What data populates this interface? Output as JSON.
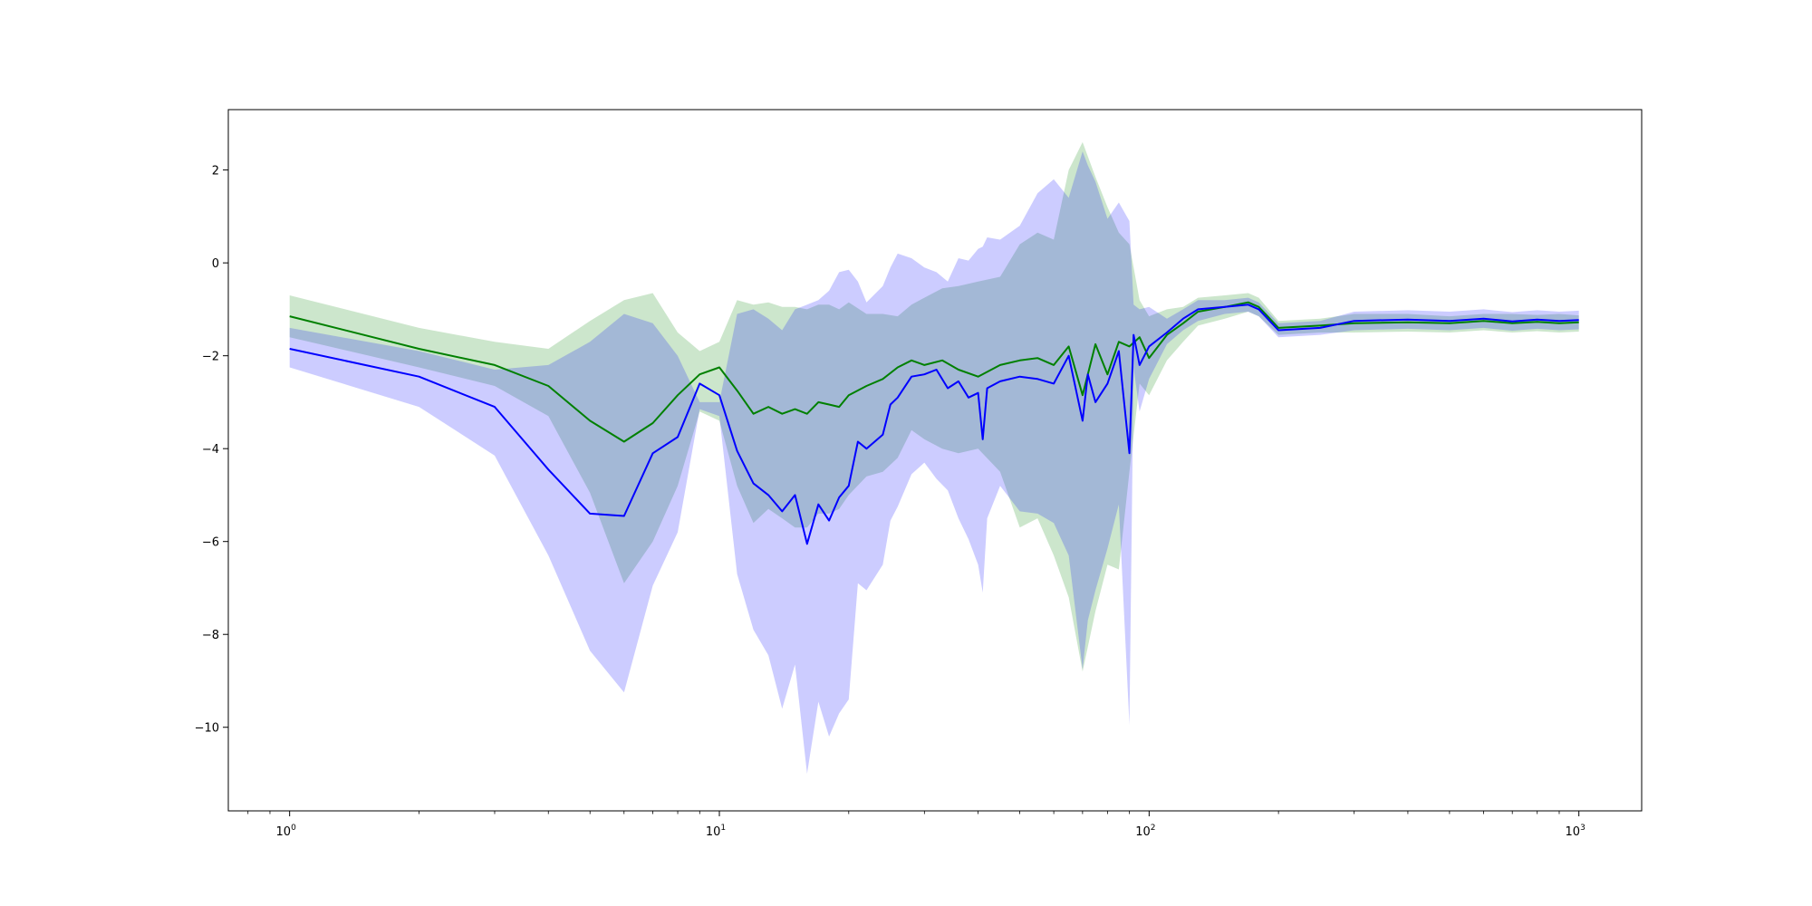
{
  "chart_data": {
    "type": "line",
    "title": "",
    "xlabel": "",
    "ylabel": "",
    "x_scale": "log",
    "xlim": [
      0.72,
      1400
    ],
    "ylim": [
      -11.8,
      3.3
    ],
    "grid": false,
    "legend": "none",
    "x_ticks": [
      {
        "value": 1,
        "base": "10",
        "exp": "0"
      },
      {
        "value": 10,
        "base": "10",
        "exp": "1"
      },
      {
        "value": 100,
        "base": "10",
        "exp": "2"
      },
      {
        "value": 1000,
        "base": "10",
        "exp": "3"
      }
    ],
    "y_ticks": [
      {
        "value": 2,
        "label": "2"
      },
      {
        "value": 0,
        "label": "0"
      },
      {
        "value": -2,
        "label": "−2"
      },
      {
        "value": -4,
        "label": "−4"
      },
      {
        "value": -6,
        "label": "−6"
      },
      {
        "value": -8,
        "label": "−8"
      },
      {
        "value": -10,
        "label": "−10"
      }
    ],
    "series": [
      {
        "color": "#008000",
        "fill_opacity": 0.2,
        "x": [
          1,
          2,
          3,
          4,
          5,
          6,
          7,
          8,
          9,
          10,
          11,
          12,
          13,
          14,
          15,
          16,
          17,
          18,
          19,
          20,
          22,
          24,
          26,
          28,
          30,
          33,
          36,
          40,
          45,
          50,
          55,
          60,
          65,
          70,
          75,
          80,
          85,
          90,
          95,
          100,
          110,
          120,
          130,
          150,
          170,
          180,
          200,
          250,
          300,
          400,
          500,
          600,
          700,
          800,
          900,
          1000
        ],
        "y": [
          -1.15,
          -1.85,
          -2.2,
          -2.65,
          -3.4,
          -3.85,
          -3.45,
          -2.85,
          -2.4,
          -2.25,
          -2.75,
          -3.25,
          -3.1,
          -3.25,
          -3.15,
          -3.25,
          -3.0,
          -3.05,
          -3.1,
          -2.85,
          -2.65,
          -2.5,
          -2.25,
          -2.1,
          -2.2,
          -2.1,
          -2.3,
          -2.45,
          -2.2,
          -2.1,
          -2.05,
          -2.2,
          -1.8,
          -2.85,
          -1.75,
          -2.4,
          -1.7,
          -1.8,
          -1.6,
          -2.05,
          -1.55,
          -1.3,
          -1.05,
          -0.95,
          -0.85,
          -0.95,
          -1.4,
          -1.35,
          -1.3,
          -1.28,
          -1.3,
          -1.25,
          -1.3,
          -1.27,
          -1.3,
          -1.28
        ],
        "upper": [
          -0.7,
          -1.4,
          -1.7,
          -1.85,
          -1.25,
          -0.8,
          -0.65,
          -1.5,
          -1.9,
          -1.7,
          -0.8,
          -0.9,
          -0.85,
          -0.95,
          -0.95,
          -1.0,
          -0.9,
          -0.9,
          -1.0,
          -0.85,
          -1.1,
          -1.1,
          -1.15,
          -0.9,
          -0.75,
          -0.55,
          -0.5,
          -0.4,
          -0.3,
          0.4,
          0.65,
          0.5,
          2.0,
          2.6,
          1.85,
          1.2,
          0.65,
          0.4,
          -0.8,
          -1.15,
          -1.0,
          -0.95,
          -0.75,
          -0.7,
          -0.65,
          -0.75,
          -1.25,
          -1.2,
          -1.1,
          -1.1,
          -1.15,
          -1.1,
          -1.1,
          -1.12,
          -1.1,
          -1.13
        ],
        "lower": [
          -1.6,
          -2.25,
          -2.65,
          -3.3,
          -4.95,
          -6.9,
          -6.0,
          -4.8,
          -3.2,
          -3.4,
          -4.8,
          -5.6,
          -5.3,
          -5.5,
          -5.7,
          -5.7,
          -5.4,
          -5.4,
          -5.3,
          -5.0,
          -4.6,
          -4.5,
          -4.2,
          -3.6,
          -3.8,
          -4.0,
          -4.1,
          -4.0,
          -4.5,
          -5.7,
          -5.5,
          -6.3,
          -7.2,
          -8.8,
          -7.5,
          -6.5,
          -6.6,
          -4.5,
          -2.6,
          -2.85,
          -2.1,
          -1.7,
          -1.35,
          -1.2,
          -1.05,
          -1.15,
          -1.55,
          -1.5,
          -1.5,
          -1.48,
          -1.5,
          -1.45,
          -1.5,
          -1.47,
          -1.5,
          -1.48
        ]
      },
      {
        "color": "#0000ff",
        "fill_opacity": 0.2,
        "x": [
          1,
          2,
          3,
          4,
          5,
          6,
          7,
          8,
          9,
          10,
          11,
          12,
          13,
          14,
          15,
          16,
          17,
          18,
          19,
          20,
          21,
          22,
          24,
          25,
          26,
          28,
          30,
          32,
          34,
          36,
          38,
          40,
          41,
          42,
          45,
          50,
          55,
          60,
          65,
          70,
          72,
          75,
          80,
          85,
          90,
          92,
          95,
          100,
          110,
          120,
          130,
          150,
          170,
          180,
          200,
          250,
          300,
          400,
          500,
          600,
          700,
          800,
          900,
          1000
        ],
        "y": [
          -1.85,
          -2.45,
          -3.1,
          -4.45,
          -5.4,
          -5.45,
          -4.1,
          -3.75,
          -2.6,
          -2.85,
          -4.05,
          -4.75,
          -5.0,
          -5.35,
          -5.0,
          -6.05,
          -5.2,
          -5.55,
          -5.05,
          -4.8,
          -3.85,
          -4.0,
          -3.7,
          -3.05,
          -2.9,
          -2.45,
          -2.4,
          -2.3,
          -2.7,
          -2.55,
          -2.9,
          -2.8,
          -3.8,
          -2.7,
          -2.55,
          -2.45,
          -2.5,
          -2.6,
          -2.0,
          -3.4,
          -2.4,
          -3.0,
          -2.6,
          -1.9,
          -4.1,
          -1.55,
          -2.2,
          -1.8,
          -1.5,
          -1.2,
          -1.0,
          -0.95,
          -0.9,
          -1.0,
          -1.45,
          -1.4,
          -1.25,
          -1.22,
          -1.25,
          -1.2,
          -1.26,
          -1.22,
          -1.25,
          -1.23
        ],
        "upper": [
          -1.4,
          -1.9,
          -2.3,
          -2.2,
          -1.7,
          -1.1,
          -1.3,
          -2.0,
          -3.0,
          -3.0,
          -1.1,
          -1.0,
          -1.2,
          -1.45,
          -1.0,
          -0.9,
          -0.8,
          -0.6,
          -0.2,
          -0.15,
          -0.4,
          -0.85,
          -0.5,
          -0.1,
          0.2,
          0.1,
          -0.1,
          -0.2,
          -0.4,
          0.1,
          0.05,
          0.3,
          0.35,
          0.55,
          0.5,
          0.8,
          1.5,
          1.8,
          1.4,
          2.4,
          2.1,
          1.75,
          0.95,
          1.3,
          0.9,
          -0.9,
          -1.0,
          -0.95,
          -1.2,
          -1.0,
          -0.8,
          -0.8,
          -0.75,
          -0.85,
          -1.3,
          -1.25,
          -1.05,
          -1.02,
          -1.05,
          -1.0,
          -1.06,
          -1.02,
          -1.05,
          -1.03
        ],
        "lower": [
          -2.25,
          -3.1,
          -4.15,
          -6.3,
          -8.35,
          -9.25,
          -6.95,
          -5.8,
          -3.15,
          -3.3,
          -6.7,
          -7.9,
          -8.45,
          -9.6,
          -8.65,
          -11.0,
          -9.45,
          -10.2,
          -9.7,
          -9.4,
          -6.9,
          -7.05,
          -6.5,
          -5.55,
          -5.25,
          -4.55,
          -4.3,
          -4.65,
          -4.9,
          -5.5,
          -5.95,
          -6.5,
          -7.1,
          -5.5,
          -4.8,
          -5.35,
          -5.4,
          -5.6,
          -6.3,
          -8.75,
          -7.7,
          -7.05,
          -6.15,
          -5.2,
          -9.95,
          -2.25,
          -3.2,
          -2.5,
          -1.75,
          -1.45,
          -1.25,
          -1.1,
          -1.05,
          -1.15,
          -1.6,
          -1.55,
          -1.45,
          -1.42,
          -1.45,
          -1.4,
          -1.46,
          -1.42,
          -1.45,
          -1.43
        ]
      }
    ]
  }
}
